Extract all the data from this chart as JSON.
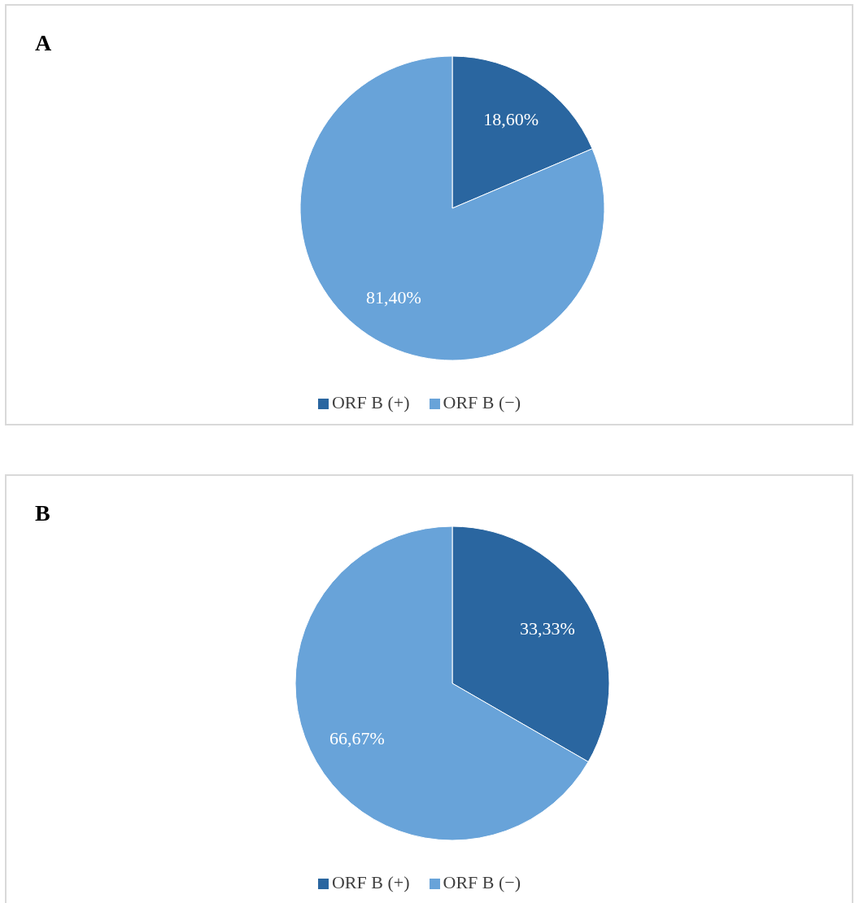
{
  "chart_data": [
    {
      "type": "pie",
      "title": "A",
      "categories": [
        "ORF B (+)",
        "ORF B (−)"
      ],
      "values": [
        18.6,
        81.4
      ],
      "colors": [
        "#2a66a0",
        "#68a3d9"
      ],
      "value_labels": [
        "18,60%",
        "81,40%"
      ],
      "legend": "bottom"
    },
    {
      "type": "pie",
      "title": "B",
      "categories": [
        "ORF B (+)",
        "ORF B (−)"
      ],
      "values": [
        33.33,
        66.67
      ],
      "colors": [
        "#2a66a0",
        "#68a3d9"
      ],
      "value_labels": [
        "33,33%",
        "66,67%"
      ],
      "legend": "bottom"
    }
  ]
}
